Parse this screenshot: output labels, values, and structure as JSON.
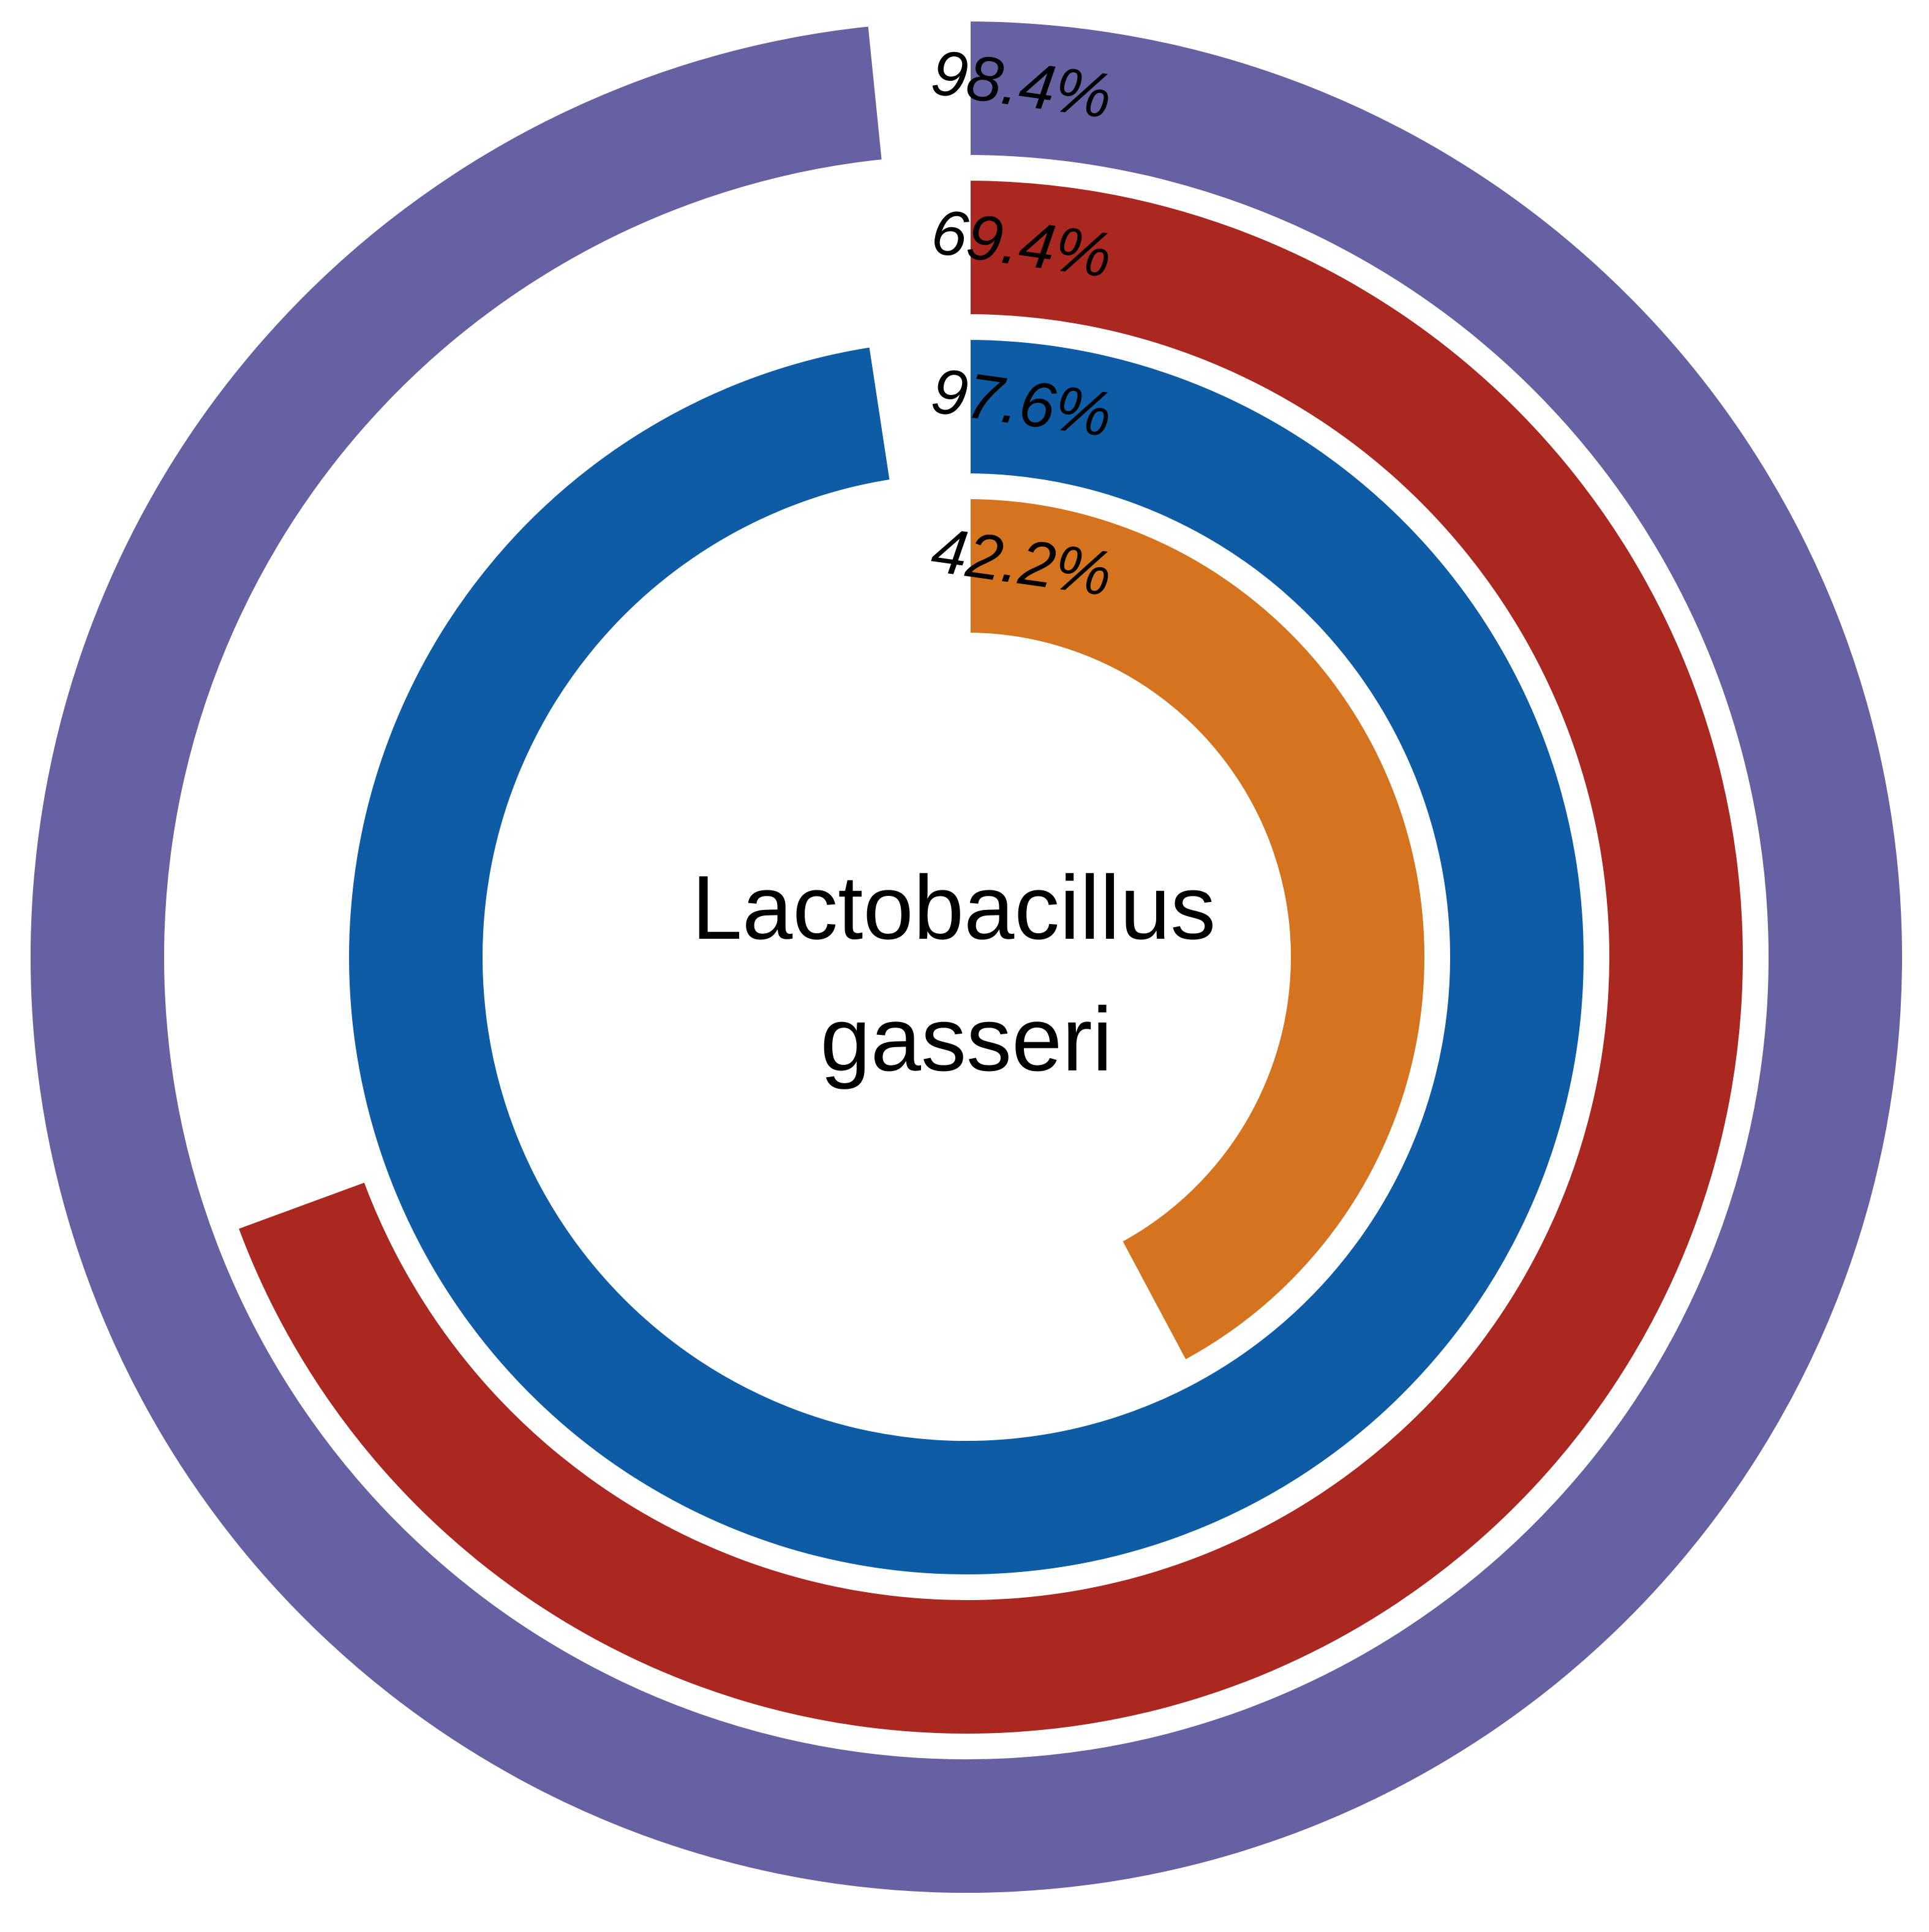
{
  "chart_data": {
    "type": "radial_bar",
    "center_label_lines": [
      "Lactobacillus",
      "gasseri"
    ],
    "unit": "%",
    "max": 100,
    "series": [
      {
        "value": 98.4,
        "label": "98.4%",
        "color": "#6561a2"
      },
      {
        "value": 69.4,
        "label": "69.4%",
        "color": "#ab2820"
      },
      {
        "value": 97.6,
        "label": "97.6%",
        "color": "#0e5ca5"
      },
      {
        "value": 42.2,
        "label": "42.2%",
        "color": "#d5731f"
      }
    ]
  }
}
